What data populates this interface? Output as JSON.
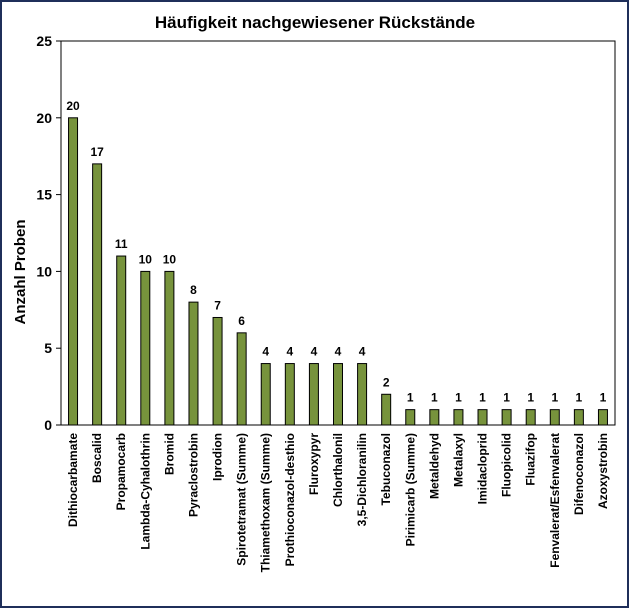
{
  "chart_data": {
    "type": "bar",
    "title": "Häufigkeit nachgewiesener Rückstände",
    "xlabel": "",
    "ylabel": "Anzahl Proben",
    "ylim": [
      0,
      25
    ],
    "yticks": [
      0,
      5,
      10,
      15,
      20,
      25
    ],
    "grid": false,
    "legend": "none",
    "bar_color": "#77933c",
    "bar_edge_color": "#000000",
    "categories": [
      "Dithiocarbamate",
      "Boscalid",
      "Propamocarb",
      "Lambda-Cyhalothrin",
      "Bromid",
      "Pyraclostrobin",
      "Iprodion",
      "Spirotetramat (Summe)",
      "Thiamethoxam (Summe)",
      "Prothioconazol-desthio",
      "Fluroxypyr",
      "Chlorthalonil",
      "3,5-Dichloranilin",
      "Tebuconazol",
      "Pirimicarb (Summe)",
      "Metaldehyd",
      "Metalaxyl",
      "Imidacloprid",
      "Fluopicolid",
      "Fluazifop",
      "Fenvalerat/Esfenvalerat",
      "Difenoconazol",
      "Azoxystrobin"
    ],
    "values": [
      20,
      17,
      11,
      10,
      10,
      8,
      7,
      6,
      4,
      4,
      4,
      4,
      4,
      2,
      1,
      1,
      1,
      1,
      1,
      1,
      1,
      1,
      1
    ]
  }
}
